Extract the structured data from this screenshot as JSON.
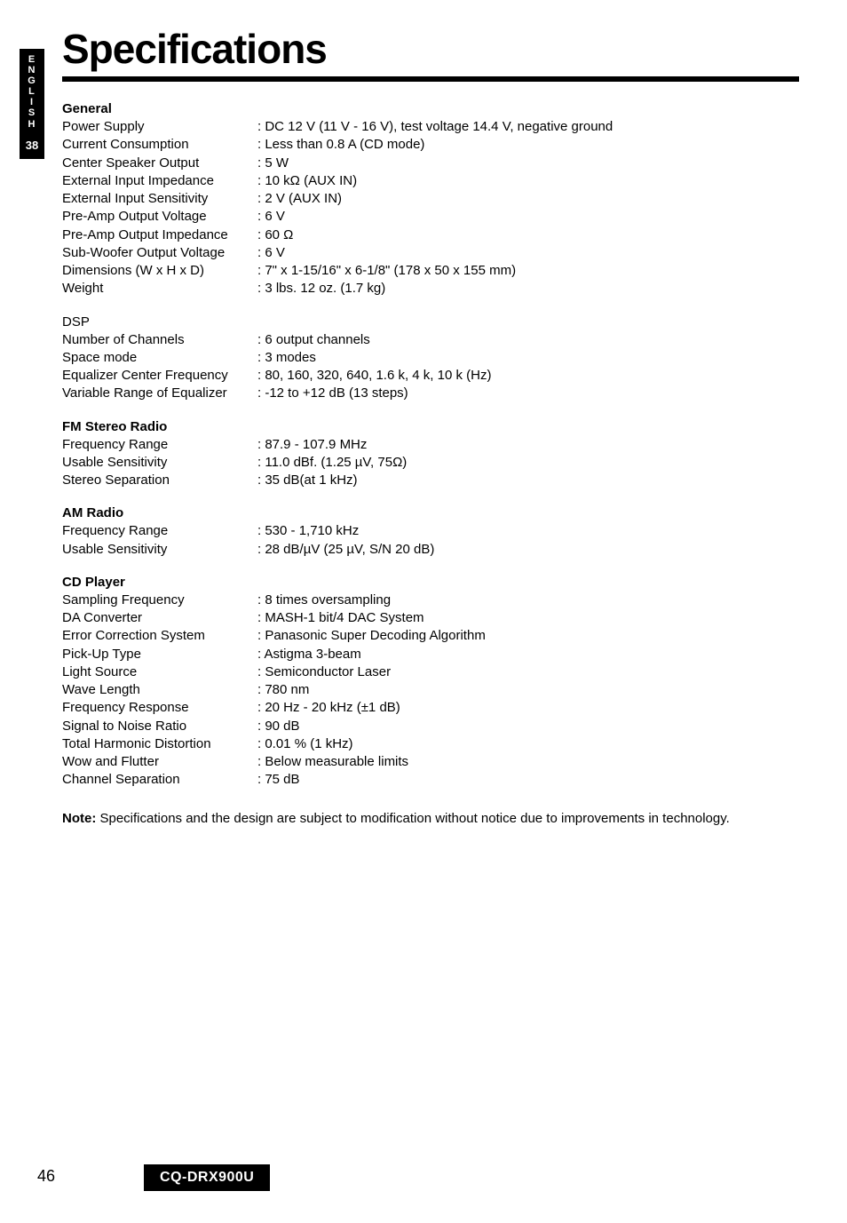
{
  "side": {
    "language": "E\nN\nG\nL\nI\nS\nH",
    "page": "38"
  },
  "title": "Specifications",
  "sections": {
    "general": {
      "heading": "General",
      "rows": [
        {
          "label": "Power Supply",
          "value": ": DC 12 V (11 V - 16 V), test voltage 14.4 V, negative ground"
        },
        {
          "label": "Current Consumption",
          "value": ": Less than 0.8 A (CD mode)"
        },
        {
          "label": "Center Speaker Output",
          "value": ": 5 W"
        },
        {
          "label": "External Input Impedance",
          "value": ": 10 kΩ (AUX IN)"
        },
        {
          "label": "External Input Sensitivity",
          "value": ": 2 V (AUX IN)"
        },
        {
          "label": "Pre-Amp Output Voltage",
          "value": ": 6 V"
        },
        {
          "label": "Pre-Amp Output Impedance",
          "value": ": 60 Ω"
        },
        {
          "label": "Sub-Woofer Output Voltage",
          "value": ": 6 V"
        },
        {
          "label": "Dimensions (W x H x D)",
          "value": ": 7\" x 1-15/16\" x 6-1/8\"  (178 x 50 x 155 mm)"
        },
        {
          "label": "Weight",
          "value": ": 3 lbs. 12 oz. (1.7 kg)"
        }
      ]
    },
    "dsp": {
      "heading": "DSP",
      "rows": [
        {
          "label": "Number of Channels",
          "value": ": 6 output channels"
        },
        {
          "label": "Space mode",
          "value": ": 3 modes"
        },
        {
          "label": "Equalizer Center Frequency",
          "value": ": 80, 160, 320, 640, 1.6 k, 4 k, 10 k (Hz)"
        },
        {
          "label": "Variable Range of Equalizer",
          "value": ": -12 to +12 dB (13 steps)"
        }
      ]
    },
    "fm": {
      "heading": "FM Stereo Radio",
      "rows": [
        {
          "label": "Frequency Range",
          "value": ": 87.9 - 107.9 MHz"
        },
        {
          "label": "Usable Sensitivity",
          "value": ": 11.0 dBf. (1.25 µV, 75Ω)"
        },
        {
          "label": "Stereo Separation",
          "value": ": 35 dB(at 1 kHz)"
        }
      ]
    },
    "am": {
      "heading": "AM Radio",
      "rows": [
        {
          "label": "Frequency Range",
          "value": ": 530 - 1,710 kHz"
        },
        {
          "label": "Usable Sensitivity",
          "value": ": 28 dB/µV (25 µV, S/N 20 dB)"
        }
      ]
    },
    "cd": {
      "heading": "CD Player",
      "rows": [
        {
          "label": "Sampling Frequency",
          "value": ": 8 times oversampling"
        },
        {
          "label": "DA Converter",
          "value": ": MASH-1 bit/4 DAC System"
        },
        {
          "label": "Error Correction System",
          "value": ": Panasonic Super Decoding Algorithm"
        },
        {
          "label": "Pick-Up Type",
          "value": ": Astigma 3-beam"
        },
        {
          "label": "Light Source",
          "value": ": Semiconductor Laser"
        },
        {
          "label": "Wave Length",
          "value": ": 780 nm"
        },
        {
          "label": "Frequency Response",
          "value": ": 20 Hz - 20 kHz (±1 dB)"
        },
        {
          "label": "Signal to Noise Ratio",
          "value": ": 90 dB"
        },
        {
          "label": "Total Harmonic Distortion",
          "value": ": 0.01 % (1 kHz)"
        },
        {
          "label": "Wow and Flutter",
          "value": ": Below measurable limits"
        },
        {
          "label": "Channel Separation",
          "value": ": 75 dB"
        }
      ]
    }
  },
  "note": {
    "label": "Note:",
    "text": " Specifications and the design are subject to modification without notice due to improvements in technology."
  },
  "footer": {
    "page": "46",
    "model": "CQ-DRX900U"
  }
}
